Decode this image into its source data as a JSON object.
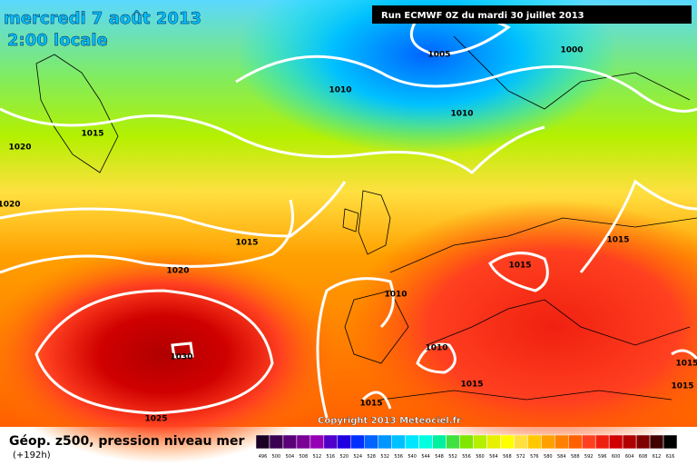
{
  "header": {
    "date": "mercredi 7 août 2013",
    "time": "2:00 locale",
    "run": "Run ECMWF 0Z du mardi 30 juillet 2013"
  },
  "isobar_labels": [
    "1005",
    "1000",
    "1010",
    "1010",
    "1015",
    "1020",
    "1020",
    "1015",
    "1020",
    "1015",
    "1015",
    "1010",
    "1030",
    "1010",
    "1015",
    "1015",
    "1025",
    "1015",
    "1015"
  ],
  "footer": {
    "copyright": "Copyright 2013 Meteociel.fr",
    "title": "Géop. z500, pression niveau mer",
    "lead": "(+192h)"
  },
  "legend": [
    {
      "label": "496",
      "color": "#1a0024"
    },
    {
      "label": "500",
      "color": "#3c0050"
    },
    {
      "label": "504",
      "color": "#5a0078"
    },
    {
      "label": "508",
      "color": "#7a0096"
    },
    {
      "label": "512",
      "color": "#9600b4"
    },
    {
      "label": "516",
      "color": "#5000c8"
    },
    {
      "label": "520",
      "color": "#2000e0"
    },
    {
      "label": "524",
      "color": "#0030ff"
    },
    {
      "label": "528",
      "color": "#0064ff"
    },
    {
      "label": "532",
      "color": "#0096ff"
    },
    {
      "label": "536",
      "color": "#00c0ff"
    },
    {
      "label": "540",
      "color": "#00e6ff"
    },
    {
      "label": "544",
      "color": "#00ffe0"
    },
    {
      "label": "548",
      "color": "#00f0a0"
    },
    {
      "label": "552",
      "color": "#40e040"
    },
    {
      "label": "556",
      "color": "#80e600"
    },
    {
      "label": "560",
      "color": "#b4f000"
    },
    {
      "label": "564",
      "color": "#e6f000"
    },
    {
      "label": "568",
      "color": "#ffff00"
    },
    {
      "label": "572",
      "color": "#ffe040"
    },
    {
      "label": "576",
      "color": "#ffc800"
    },
    {
      "label": "580",
      "color": "#ffa000"
    },
    {
      "label": "584",
      "color": "#ff8000"
    },
    {
      "label": "588",
      "color": "#ff6000"
    },
    {
      "label": "592",
      "color": "#ff4020"
    },
    {
      "label": "596",
      "color": "#f02010"
    },
    {
      "label": "600",
      "color": "#d00000"
    },
    {
      "label": "604",
      "color": "#b00000"
    },
    {
      "label": "608",
      "color": "#800000"
    },
    {
      "label": "612",
      "color": "#400000"
    },
    {
      "label": "616",
      "color": "#000000"
    }
  ]
}
